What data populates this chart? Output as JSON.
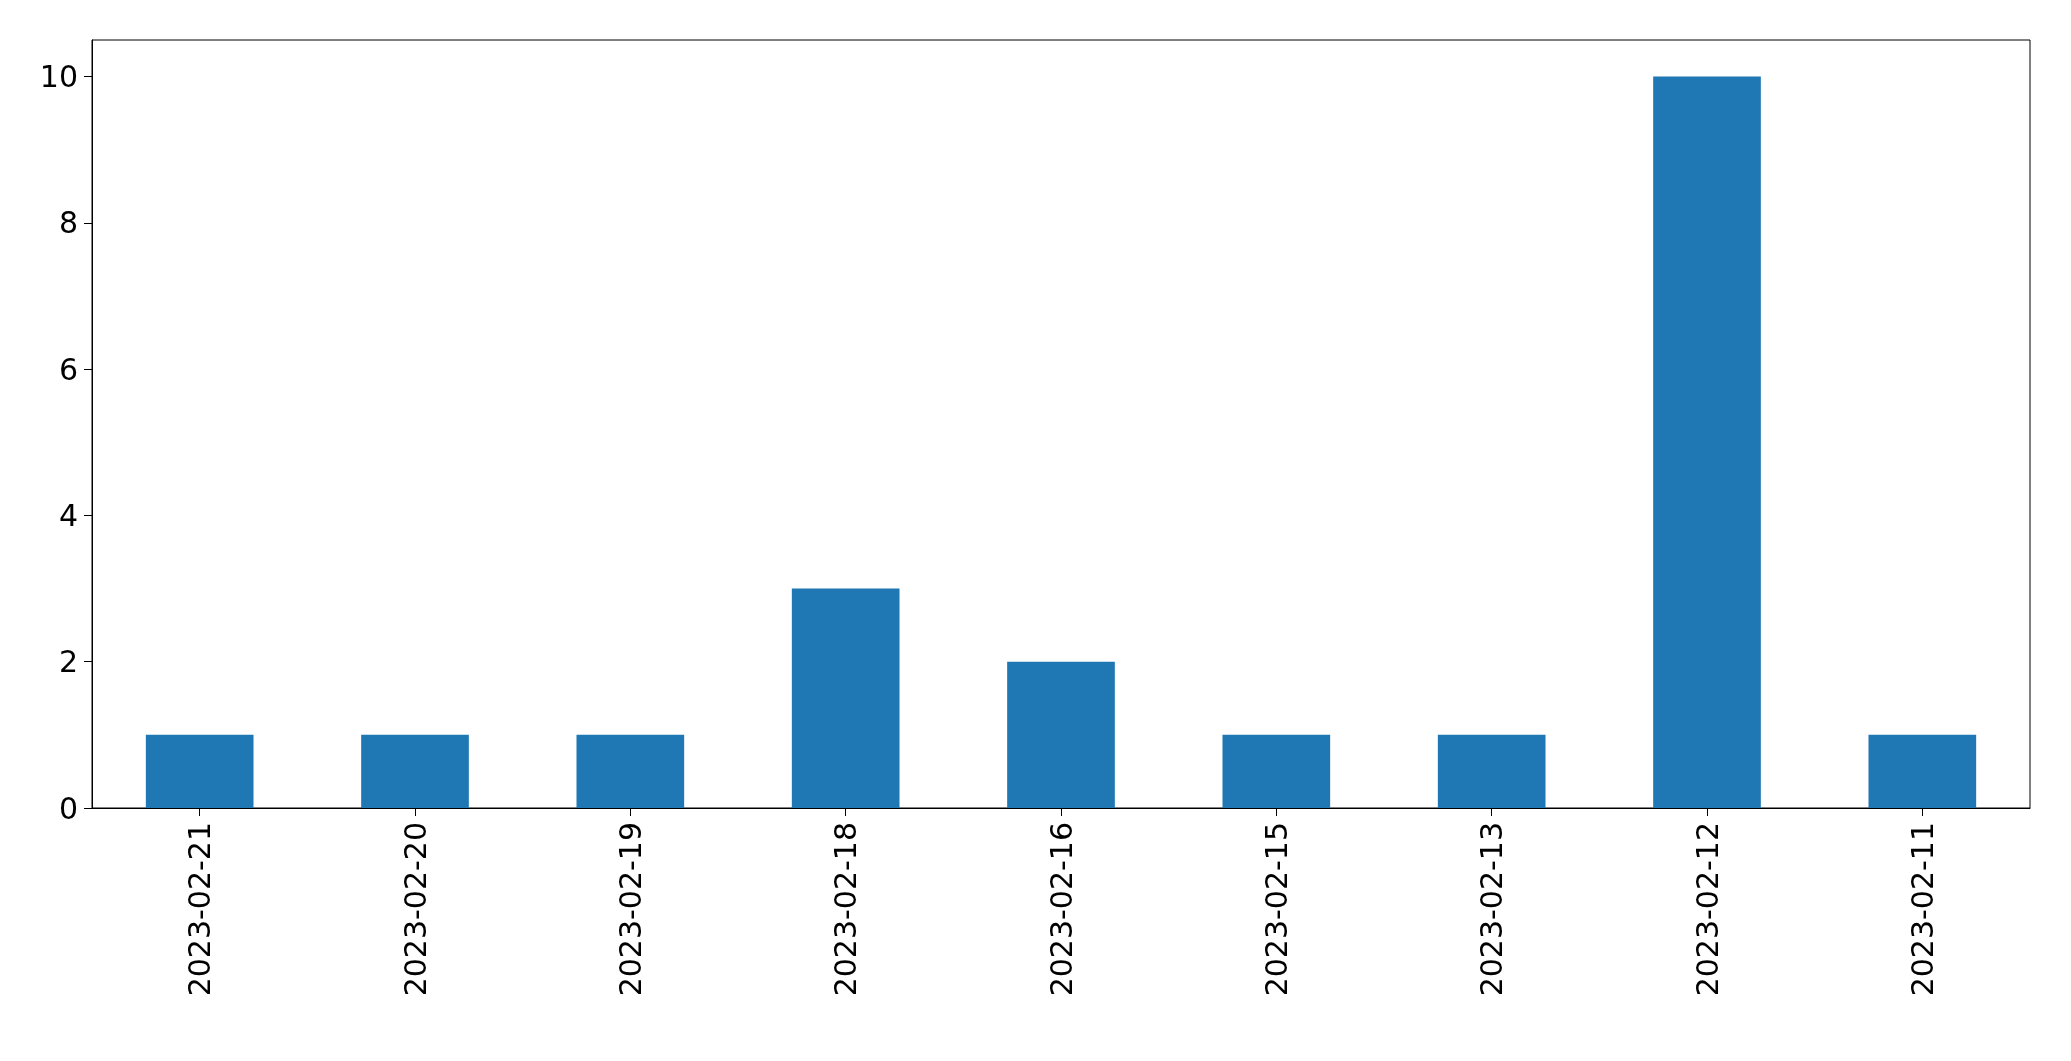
{
  "chart_data": {
    "type": "bar",
    "categories": [
      "2023-02-21",
      "2023-02-20",
      "2023-02-19",
      "2023-02-18",
      "2023-02-16",
      "2023-02-15",
      "2023-02-13",
      "2023-02-12",
      "2023-02-11"
    ],
    "values": [
      1,
      1,
      1,
      3,
      2,
      1,
      1,
      10,
      1
    ],
    "color": "#1f77b4",
    "ylim": [
      0,
      10.5
    ],
    "yticks": [
      0,
      2,
      4,
      6,
      8,
      10
    ],
    "grid": false
  }
}
